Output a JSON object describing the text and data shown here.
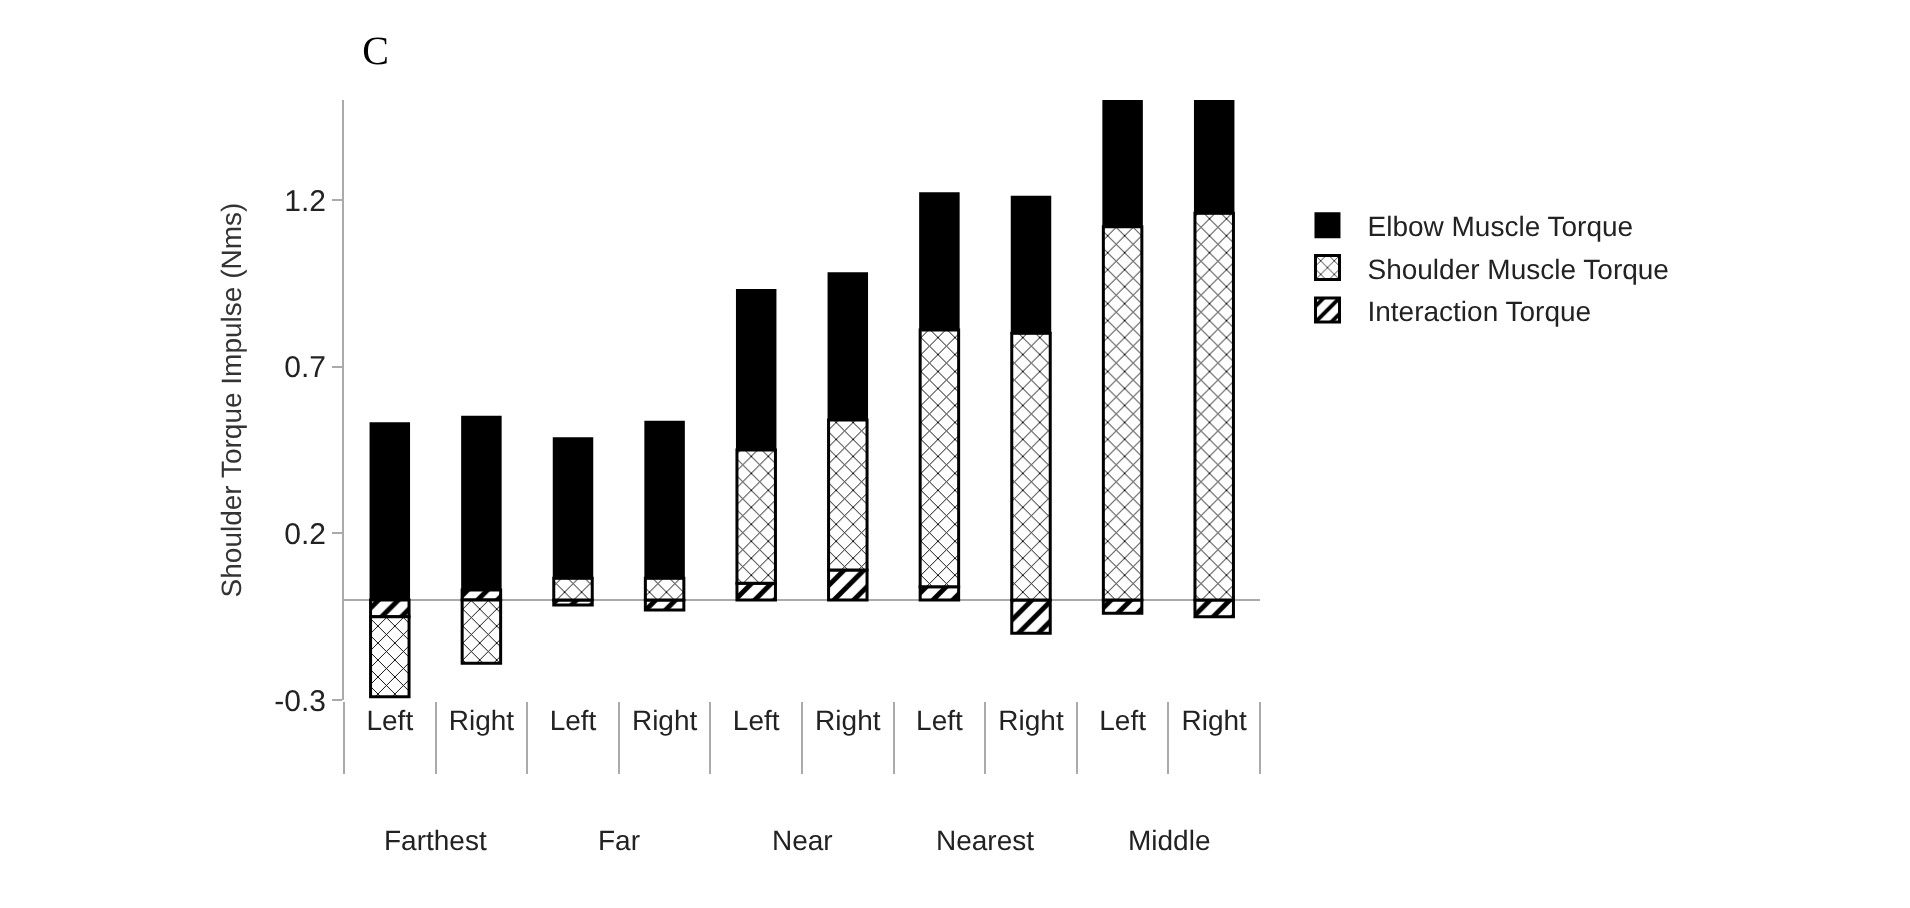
{
  "chart_data": {
    "type": "bar",
    "title": "C",
    "ylabel": "Shoulder Torque Impulse (Nms)",
    "categories": [
      "Left",
      "Right",
      "Left",
      "Right",
      "Left",
      "Right",
      "Left",
      "Right",
      "Left",
      "Right"
    ],
    "annotations": [
      "Farthest",
      "Far",
      "Near",
      "Nearest",
      "Middle"
    ],
    "stacked": true,
    "series": [
      {
        "name": "Interaction Torque",
        "color": "#000000",
        "values": [
          -0.05,
          0.03,
          -0.015,
          -0.03,
          0.05,
          0.09,
          0.04,
          -0.1,
          -0.04,
          -0.05
        ]
      },
      {
        "name": "Shoulder Muscle Torque",
        "color": "#000000",
        "values": [
          -0.24,
          -0.19,
          0.065,
          0.065,
          0.4,
          0.45,
          0.77,
          0.8,
          1.12,
          1.16
        ]
      },
      {
        "name": "Elbow Muscle Torque",
        "color": "#000000",
        "values": [
          0.53,
          0.52,
          0.42,
          0.47,
          0.48,
          0.44,
          0.41,
          0.41,
          0.38,
          0.34
        ]
      }
    ],
    "ylim": [
      -0.3,
      1.5
    ],
    "yticks": [
      -0.3,
      0.2,
      0.7,
      1.2
    ],
    "grid": false,
    "legend": "right"
  }
}
